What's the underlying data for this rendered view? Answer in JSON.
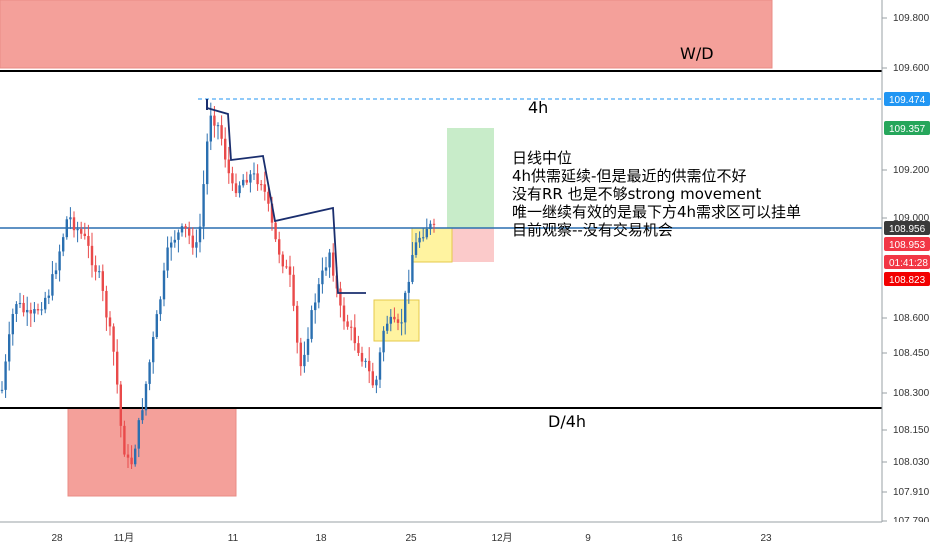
{
  "chart_data": {
    "type": "candlestick",
    "title": "",
    "xlabel": "",
    "ylabel": "",
    "ylim": [
      107.79,
      109.9
    ],
    "y_ticks": [
      "109.800",
      "109.600",
      "109.200",
      "109.000",
      "108.600",
      "108.450",
      "108.300",
      "108.150",
      "108.030",
      "107.910",
      "107.790"
    ],
    "x_ticks": [
      "28",
      "11月",
      "11",
      "18",
      "25",
      "12月",
      "9",
      "16",
      "23"
    ],
    "price_tags": [
      {
        "label": "109.474",
        "value": 109.474,
        "color": "#2196f3"
      },
      {
        "label": "109.357",
        "value": 109.357,
        "color": "#26a65b"
      },
      {
        "label": "108.956",
        "value": 108.956,
        "color": "#3a3a3a"
      },
      {
        "label": "108.953",
        "value": 108.953,
        "color": "#f23645"
      },
      {
        "label": "01:41:28",
        "value": 108.89,
        "color": "#f23645"
      },
      {
        "label": "108.823",
        "value": 108.823,
        "color": "#f20000"
      }
    ],
    "horizontal_lines": [
      {
        "name": "upper-level",
        "value": 109.59,
        "color": "#000000"
      },
      {
        "name": "lower-level",
        "value": 108.24,
        "color": "#000000"
      },
      {
        "name": "current-level",
        "value": 108.956,
        "color": "#2a6fb0"
      },
      {
        "name": "dashed-high",
        "value": 109.474,
        "color": "#2196f3",
        "dashed": true
      }
    ],
    "zones": [
      {
        "name": "wd-supply-zone",
        "label": "W/D",
        "y_top": 109.92,
        "y_bottom": 109.6,
        "color": "#f4a09a"
      },
      {
        "name": "d4h-demand-zone",
        "label": "D/4h",
        "y_top": 108.24,
        "y_bottom": 107.88,
        "color": "#f4a09a"
      },
      {
        "name": "4h-zone",
        "label": "4h",
        "y_top": 109.474,
        "y_bottom": 109.474,
        "color": "none"
      },
      {
        "name": "long-target-zone",
        "y_top": 109.357,
        "y_bottom": 108.956,
        "color": "#c8ecc9"
      },
      {
        "name": "long-stop-zone",
        "y_top": 108.956,
        "y_bottom": 108.823,
        "color": "#fbcaca"
      },
      {
        "name": "yellow-zone-upper",
        "y_top": 108.95,
        "y_bottom": 108.82,
        "color": "#fff3a0"
      },
      {
        "name": "yellow-zone-lower",
        "y_top": 108.73,
        "y_bottom": 108.56,
        "color": "#fff3a0"
      }
    ],
    "annotations": [
      "日线中位",
      "4h供需延续-但是最近的供需位不好",
      "没有RR  也是不够strong movement",
      "唯一继续有效的是最下方4h需求区可以挂单",
      "目前观察--没有交易机会"
    ],
    "colors": {
      "up": "#2a6fb0",
      "down": "#e94a4a",
      "zone": "#f4a09a"
    }
  }
}
